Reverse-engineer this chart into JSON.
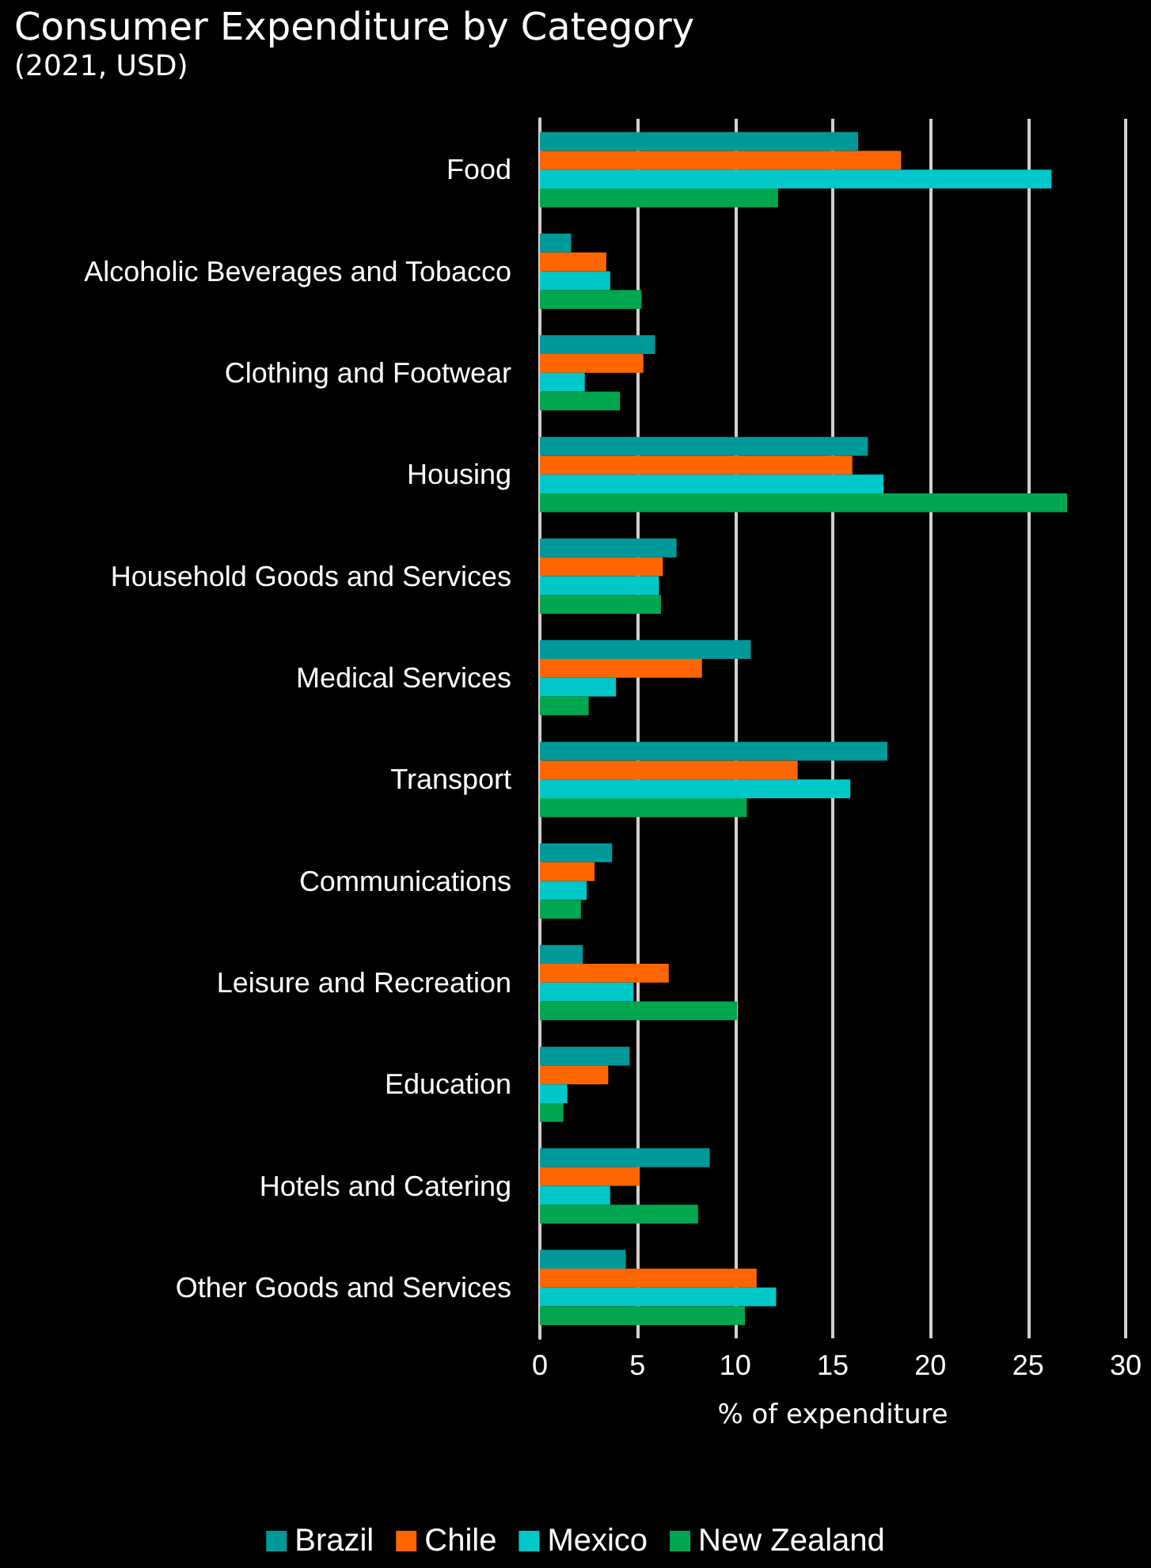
{
  "chart_data": {
    "type": "bar",
    "orientation": "horizontal",
    "title": "Consumer Expenditure by Category",
    "subtitle": "(2021, USD)",
    "xlabel": "% of expenditure",
    "categories": [
      "Food",
      "Alcoholic Beverages and Tobacco",
      "Clothing and Footwear",
      "Housing",
      "Household Goods and Services",
      "Medical Services",
      "Transport",
      "Communications",
      "Leisure and Recreation",
      "Education",
      "Hotels and Catering",
      "Other Goods and Services"
    ],
    "series": [
      {
        "name": "Brazil",
        "color": "#009999",
        "values": [
          16.3,
          1.6,
          5.9,
          16.8,
          7.0,
          10.8,
          17.8,
          3.7,
          2.2,
          4.6,
          8.7,
          4.4
        ]
      },
      {
        "name": "Chile",
        "color": "#ff6600",
        "values": [
          18.5,
          3.4,
          5.3,
          16.0,
          6.3,
          8.3,
          13.2,
          2.8,
          6.6,
          3.5,
          5.1,
          11.1
        ]
      },
      {
        "name": "Mexico",
        "color": "#00c8c8",
        "values": [
          26.2,
          3.6,
          2.3,
          17.6,
          6.1,
          3.9,
          15.9,
          2.4,
          4.8,
          1.4,
          3.6,
          12.1
        ]
      },
      {
        "name": "New Zealand",
        "color": "#00a650",
        "values": [
          12.2,
          5.2,
          4.1,
          27.0,
          6.2,
          2.5,
          10.6,
          2.1,
          10.1,
          1.2,
          8.1,
          10.5
        ]
      }
    ],
    "xlim": [
      0,
      30
    ],
    "xticks": [
      0,
      5,
      10,
      15,
      20,
      25,
      30
    ],
    "grid": "x",
    "legend": "bottom"
  }
}
